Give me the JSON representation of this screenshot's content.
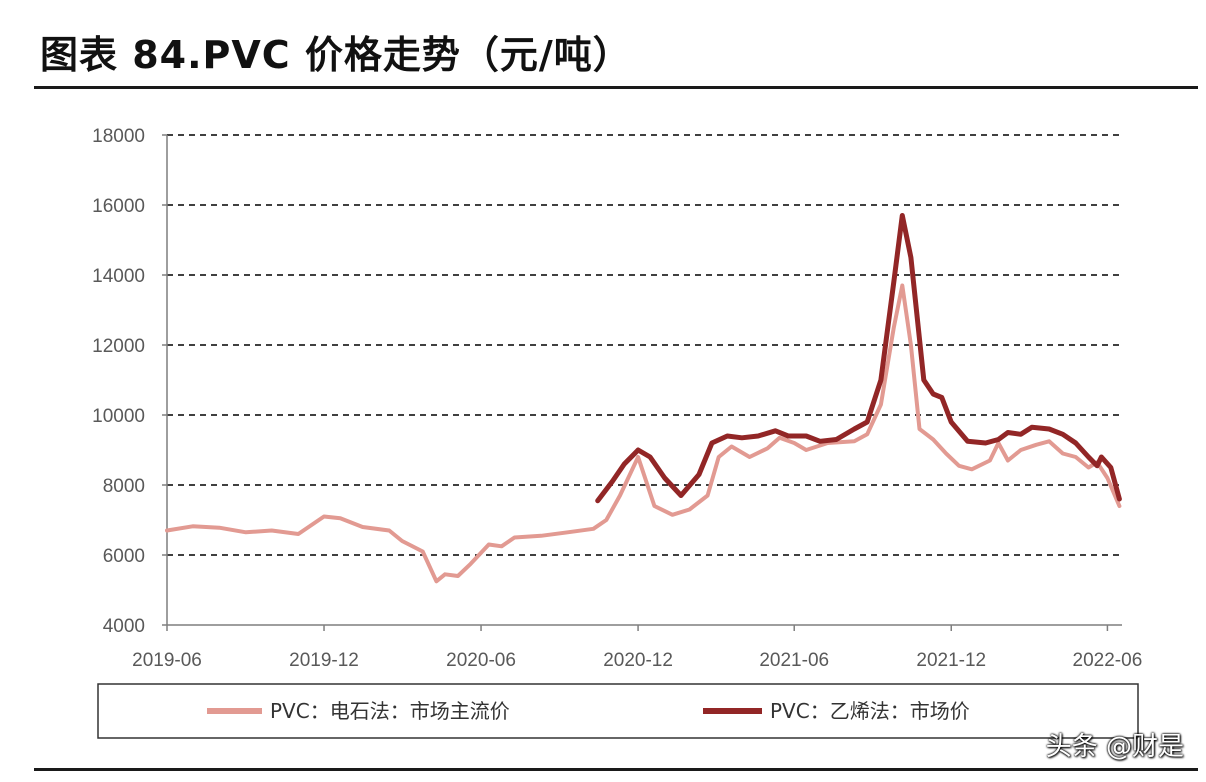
{
  "header": {
    "title": "图表 84.PVC 价格走势（元/吨）"
  },
  "watermark": "头条 @财是",
  "colors": {
    "carbide": "#e29a92",
    "ethylene": "#922626",
    "grid": "#000000",
    "axis": "#7f7f7f"
  },
  "chart_data": {
    "type": "line",
    "title": "图表 84.PVC 价格走势（元/吨）",
    "ylim": [
      4000,
      18000
    ],
    "yticks": [
      "4000",
      "6000",
      "8000",
      "10000",
      "12000",
      "14000",
      "16000",
      "18000"
    ],
    "xticks": [
      "2019-06",
      "2019-12",
      "2020-06",
      "2020-12",
      "2021-06",
      "2021-12",
      "2022-06"
    ],
    "grid": "horizontal dashed",
    "legend_position": "bottom",
    "series": [
      {
        "name": "PVC：电石法：市场主流价",
        "points": [
          [
            "2019-06-01",
            6700
          ],
          [
            "2019-07-01",
            6820
          ],
          [
            "2019-08-01",
            6780
          ],
          [
            "2019-09-01",
            6650
          ],
          [
            "2019-10-01",
            6700
          ],
          [
            "2019-11-01",
            6600
          ],
          [
            "2019-12-01",
            7100
          ],
          [
            "2019-12-20",
            7050
          ],
          [
            "2020-01-15",
            6800
          ],
          [
            "2020-02-15",
            6700
          ],
          [
            "2020-03-01",
            6400
          ],
          [
            "2020-03-25",
            6100
          ],
          [
            "2020-04-10",
            5250
          ],
          [
            "2020-04-20",
            5450
          ],
          [
            "2020-05-05",
            5400
          ],
          [
            "2020-05-20",
            5750
          ],
          [
            "2020-06-10",
            6300
          ],
          [
            "2020-06-25",
            6250
          ],
          [
            "2020-07-10",
            6500
          ],
          [
            "2020-08-10",
            6550
          ],
          [
            "2020-09-10",
            6650
          ],
          [
            "2020-10-10",
            6750
          ],
          [
            "2020-10-25",
            7000
          ],
          [
            "2020-11-10",
            7700
          ],
          [
            "2020-12-01",
            8800
          ],
          [
            "2020-12-20",
            7400
          ],
          [
            "2021-01-10",
            7150
          ],
          [
            "2021-01-30",
            7300
          ],
          [
            "2021-02-20",
            7700
          ],
          [
            "2021-03-05",
            8800
          ],
          [
            "2021-03-20",
            9100
          ],
          [
            "2021-04-10",
            8800
          ],
          [
            "2021-05-01",
            9050
          ],
          [
            "2021-05-15",
            9350
          ],
          [
            "2021-06-01",
            9200
          ],
          [
            "2021-06-15",
            9000
          ],
          [
            "2021-07-10",
            9200
          ],
          [
            "2021-08-10",
            9250
          ],
          [
            "2021-08-25",
            9450
          ],
          [
            "2021-09-10",
            10300
          ],
          [
            "2021-09-25",
            12500
          ],
          [
            "2021-10-05",
            13700
          ],
          [
            "2021-10-15",
            12000
          ],
          [
            "2021-10-25",
            9600
          ],
          [
            "2021-11-10",
            9300
          ],
          [
            "2021-11-25",
            8900
          ],
          [
            "2021-12-10",
            8550
          ],
          [
            "2021-12-25",
            8450
          ],
          [
            "2022-01-15",
            8700
          ],
          [
            "2022-01-25",
            9200
          ],
          [
            "2022-02-05",
            8700
          ],
          [
            "2022-02-20",
            9000
          ],
          [
            "2022-03-10",
            9150
          ],
          [
            "2022-03-25",
            9250
          ],
          [
            "2022-04-10",
            8900
          ],
          [
            "2022-04-25",
            8800
          ],
          [
            "2022-05-10",
            8500
          ],
          [
            "2022-05-20",
            8650
          ],
          [
            "2022-06-01",
            8200
          ],
          [
            "2022-06-15",
            7400
          ]
        ]
      },
      {
        "name": "PVC：乙烯法：市场价",
        "points": [
          [
            "2020-10-15",
            7550
          ],
          [
            "2020-11-01",
            8100
          ],
          [
            "2020-11-15",
            8600
          ],
          [
            "2020-12-01",
            9000
          ],
          [
            "2020-12-15",
            8800
          ],
          [
            "2021-01-01",
            8200
          ],
          [
            "2021-01-20",
            7700
          ],
          [
            "2021-02-10",
            8300
          ],
          [
            "2021-02-25",
            9200
          ],
          [
            "2021-03-15",
            9400
          ],
          [
            "2021-04-01",
            9350
          ],
          [
            "2021-04-20",
            9400
          ],
          [
            "2021-05-10",
            9550
          ],
          [
            "2021-05-25",
            9400
          ],
          [
            "2021-06-15",
            9400
          ],
          [
            "2021-07-01",
            9250
          ],
          [
            "2021-07-20",
            9300
          ],
          [
            "2021-08-10",
            9600
          ],
          [
            "2021-08-25",
            9800
          ],
          [
            "2021-09-10",
            11000
          ],
          [
            "2021-09-25",
            13800
          ],
          [
            "2021-10-05",
            15700
          ],
          [
            "2021-10-15",
            14500
          ],
          [
            "2021-10-30",
            11000
          ],
          [
            "2021-11-10",
            10600
          ],
          [
            "2021-11-20",
            10500
          ],
          [
            "2021-12-01",
            9800
          ],
          [
            "2021-12-20",
            9250
          ],
          [
            "2022-01-10",
            9200
          ],
          [
            "2022-01-25",
            9300
          ],
          [
            "2022-02-05",
            9500
          ],
          [
            "2022-02-20",
            9450
          ],
          [
            "2022-03-05",
            9650
          ],
          [
            "2022-03-25",
            9600
          ],
          [
            "2022-04-10",
            9450
          ],
          [
            "2022-04-25",
            9200
          ],
          [
            "2022-05-10",
            8800
          ],
          [
            "2022-05-20",
            8550
          ],
          [
            "2022-05-25",
            8800
          ],
          [
            "2022-06-05",
            8500
          ],
          [
            "2022-06-15",
            7600
          ]
        ]
      }
    ]
  }
}
